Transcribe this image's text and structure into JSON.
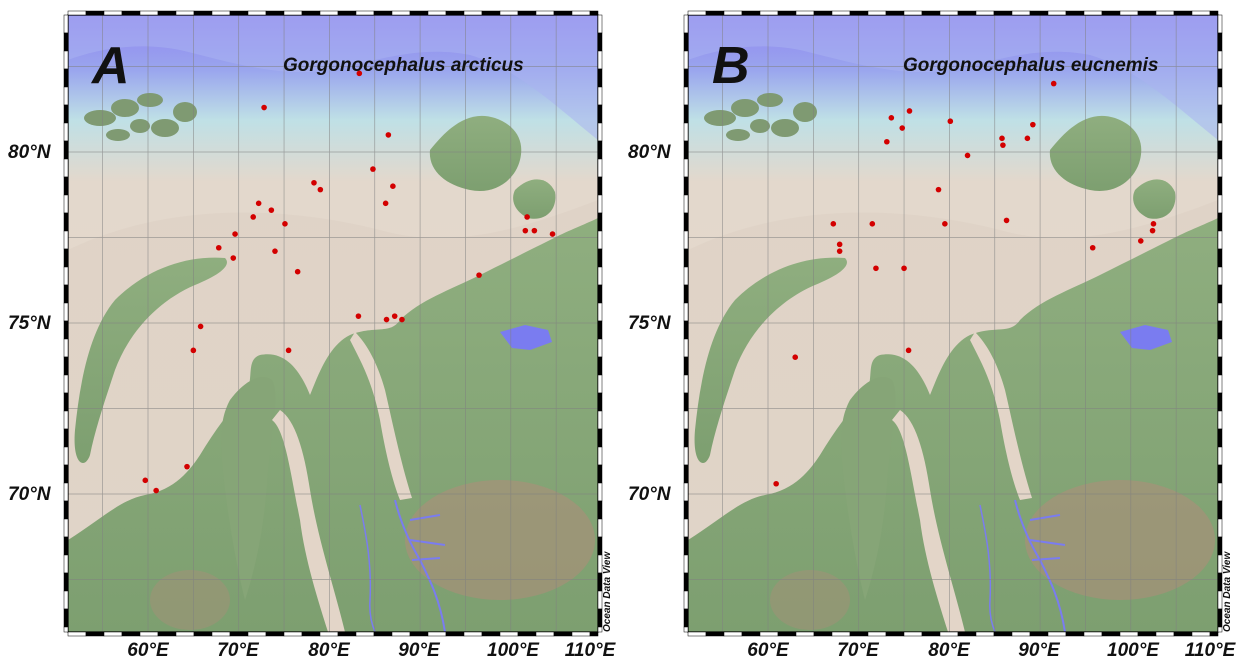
{
  "credit": "Ocean Data View",
  "lat_labels": [
    "80°N",
    "75°N",
    "70°N"
  ],
  "lon_labels": [
    "60°E",
    "70°E",
    "80°E",
    "90°E",
    "100°E",
    "110°E"
  ],
  "colors": {
    "deep_ocean": "#8f83f0",
    "shelf_shallow": "#e3d8cc",
    "land_low": "#7d9f70",
    "land_high": "#b08d7a",
    "rivers_lakes": "#7a7cf0",
    "station": "#d30000"
  },
  "panels": [
    {
      "letter": "A",
      "species": "Gorgonocephalus arcticus",
      "stations": [
        {
          "lon": 72.8,
          "lat": 81.3
        },
        {
          "lon": 83.3,
          "lat": 82.3
        },
        {
          "lon": 86.5,
          "lat": 80.5
        },
        {
          "lon": 84.8,
          "lat": 79.5
        },
        {
          "lon": 78.3,
          "lat": 79.1
        },
        {
          "lon": 79.0,
          "lat": 78.9
        },
        {
          "lon": 87.0,
          "lat": 79.0
        },
        {
          "lon": 86.2,
          "lat": 78.5
        },
        {
          "lon": 72.2,
          "lat": 78.5
        },
        {
          "lon": 73.6,
          "lat": 78.3
        },
        {
          "lon": 71.6,
          "lat": 78.1
        },
        {
          "lon": 75.1,
          "lat": 77.9
        },
        {
          "lon": 69.6,
          "lat": 77.6
        },
        {
          "lon": 67.8,
          "lat": 77.2
        },
        {
          "lon": 74.0,
          "lat": 77.1
        },
        {
          "lon": 69.4,
          "lat": 76.9
        },
        {
          "lon": 76.5,
          "lat": 76.5
        },
        {
          "lon": 96.5,
          "lat": 76.4
        },
        {
          "lon": 101.8,
          "lat": 78.1
        },
        {
          "lon": 101.6,
          "lat": 77.7
        },
        {
          "lon": 102.6,
          "lat": 77.7
        },
        {
          "lon": 104.6,
          "lat": 77.6
        },
        {
          "lon": 83.2,
          "lat": 75.2
        },
        {
          "lon": 87.2,
          "lat": 75.2
        },
        {
          "lon": 86.3,
          "lat": 75.1
        },
        {
          "lon": 88.0,
          "lat": 75.1
        },
        {
          "lon": 65.8,
          "lat": 74.9
        },
        {
          "lon": 65.0,
          "lat": 74.2
        },
        {
          "lon": 75.5,
          "lat": 74.2
        },
        {
          "lon": 64.3,
          "lat": 70.8
        },
        {
          "lon": 59.7,
          "lat": 70.4
        },
        {
          "lon": 60.9,
          "lat": 70.1
        }
      ]
    },
    {
      "letter": "B",
      "species": "Gorgonocephalus eucnemis",
      "stations": [
        {
          "lon": 91.5,
          "lat": 82.0
        },
        {
          "lon": 73.6,
          "lat": 81.0
        },
        {
          "lon": 75.6,
          "lat": 81.2
        },
        {
          "lon": 74.8,
          "lat": 80.7
        },
        {
          "lon": 73.1,
          "lat": 80.3
        },
        {
          "lon": 80.1,
          "lat": 80.9
        },
        {
          "lon": 85.8,
          "lat": 80.4
        },
        {
          "lon": 85.9,
          "lat": 80.2
        },
        {
          "lon": 89.2,
          "lat": 80.8
        },
        {
          "lon": 88.6,
          "lat": 80.4
        },
        {
          "lon": 82.0,
          "lat": 79.9
        },
        {
          "lon": 78.8,
          "lat": 78.9
        },
        {
          "lon": 86.3,
          "lat": 78.0
        },
        {
          "lon": 79.5,
          "lat": 77.9
        },
        {
          "lon": 71.5,
          "lat": 77.9
        },
        {
          "lon": 67.2,
          "lat": 77.9
        },
        {
          "lon": 67.9,
          "lat": 77.3
        },
        {
          "lon": 67.9,
          "lat": 77.1
        },
        {
          "lon": 71.9,
          "lat": 76.6
        },
        {
          "lon": 75.0,
          "lat": 76.6
        },
        {
          "lon": 102.5,
          "lat": 77.9
        },
        {
          "lon": 102.4,
          "lat": 77.7
        },
        {
          "lon": 101.1,
          "lat": 77.4
        },
        {
          "lon": 95.8,
          "lat": 77.2
        },
        {
          "lon": 75.5,
          "lat": 74.2
        },
        {
          "lon": 63.0,
          "lat": 74.0
        },
        {
          "lon": 60.9,
          "lat": 70.3
        }
      ]
    }
  ]
}
